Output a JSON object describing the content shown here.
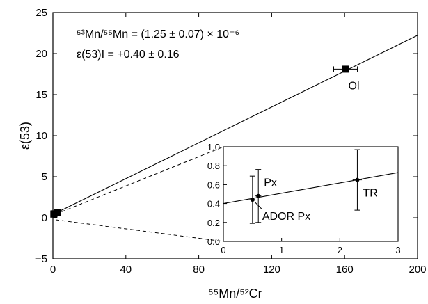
{
  "chart_data": [
    {
      "type": "scatter",
      "xlabel": "⁵⁵Mn/⁵²Cr",
      "ylabel": "ε(53)",
      "xlim": [
        0,
        200
      ],
      "ylim": [
        -5,
        25
      ],
      "x_ticks": [
        0,
        40,
        80,
        120,
        160,
        200
      ],
      "y_ticks": [
        -5,
        0,
        5,
        10,
        15,
        20,
        25
      ],
      "annotations": [
        "⁵³Mn/⁵⁵Mn = (1.25 ± 0.07) × 10⁻⁶",
        "ε(53)I = +0.40 ± 0.16"
      ],
      "fit_line": {
        "intercept": 0.4,
        "slope": 0.1091
      },
      "points": [
        {
          "label": "Ol",
          "x": 160.5,
          "y": 18.1,
          "xerr": 6.5,
          "yerr": 0.2
        },
        {
          "label": "",
          "x": 0.5,
          "y": 0.44,
          "xerr": 0,
          "yerr": 0
        },
        {
          "label": "",
          "x": 0.6,
          "y": 0.48,
          "xerr": 0,
          "yerr": 0
        },
        {
          "label": "",
          "x": 2.3,
          "y": 0.65,
          "xerr": 0,
          "yerr": 0
        }
      ],
      "grid": false
    },
    {
      "type": "scatter",
      "xlim": [
        0,
        3
      ],
      "ylim": [
        0,
        1.0
      ],
      "x_ticks": [
        0,
        1,
        2,
        3
      ],
      "y_ticks": [
        "0.0",
        "0.2",
        "0.4",
        "0.6",
        "0.8",
        "1.0"
      ],
      "fit_line": {
        "intercept": 0.4,
        "slope": 0.1091
      },
      "points": [
        {
          "label": "ADOR Px",
          "x": 0.5,
          "y": 0.44,
          "xerr": 0.05,
          "yerr": 0.25
        },
        {
          "label": "Px",
          "x": 0.6,
          "y": 0.48,
          "xerr": 0.05,
          "yerr": 0.28
        },
        {
          "label": "TR",
          "x": 2.3,
          "y": 0.65,
          "xerr": 0.08,
          "yerr": 0.32
        }
      ],
      "grid": false
    }
  ]
}
